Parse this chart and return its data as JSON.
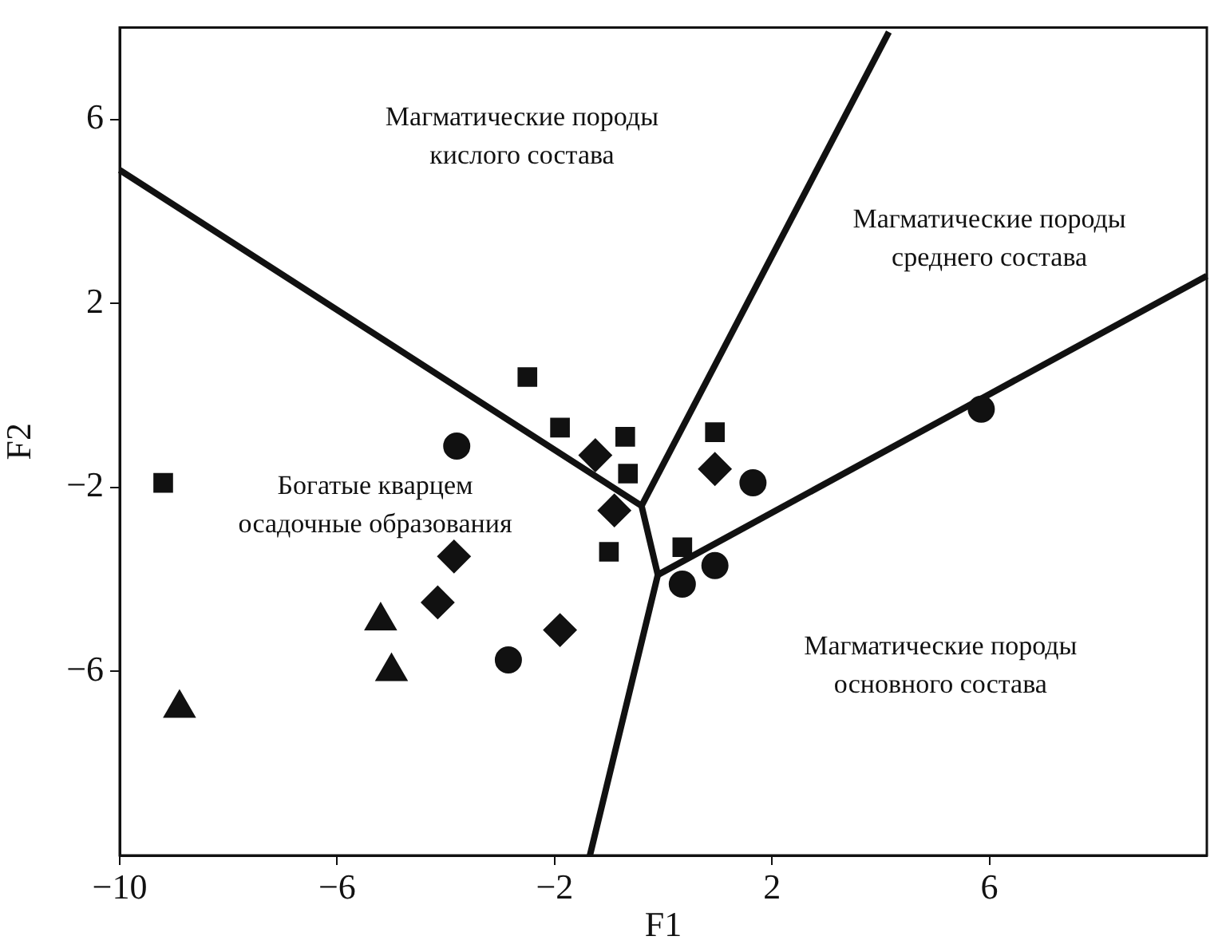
{
  "chart_data": {
    "type": "scatter",
    "xlabel": "F1",
    "ylabel": "F2",
    "xlim": [
      -10,
      10
    ],
    "ylim": [
      -10,
      8
    ],
    "xticks": [
      {
        "value": -10,
        "label": "−10"
      },
      {
        "value": -6,
        "label": "−6"
      },
      {
        "value": -2,
        "label": "−2"
      },
      2,
      6
    ],
    "yticks": [
      {
        "value": -6,
        "label": "−6"
      },
      {
        "value": -2,
        "label": "−2"
      },
      2,
      6
    ],
    "grid": false,
    "legend": false,
    "series": [
      {
        "marker": "square",
        "color": "#111111",
        "x": [
          -9.2,
          -2.5,
          -1.9,
          -0.7,
          -0.65,
          -1.0,
          0.95,
          0.35
        ],
        "values": [
          -1.9,
          0.4,
          -0.7,
          -0.9,
          -1.7,
          -3.4,
          -0.8,
          -3.3
        ]
      },
      {
        "marker": "circle",
        "color": "#111111",
        "x": [
          -3.8,
          -2.85,
          1.65,
          0.95,
          0.35,
          5.85
        ],
        "values": [
          -1.1,
          -5.75,
          -1.9,
          -3.7,
          -4.1,
          -0.3
        ]
      },
      {
        "marker": "diamond",
        "color": "#111111",
        "x": [
          -3.85,
          -4.15,
          -1.9,
          -1.25,
          -0.9,
          0.95
        ],
        "values": [
          -3.5,
          -4.5,
          -5.1,
          -1.3,
          -2.5,
          -1.6
        ]
      },
      {
        "marker": "triangle",
        "color": "#111111",
        "x": [
          -5.2,
          -5.0,
          -8.9
        ],
        "values": [
          -4.9,
          -6.0,
          -6.8
        ]
      },
      {
        "type": "line",
        "marker": "none",
        "color": "#111111",
        "x": [
          -10,
          -0.4,
          -0.1,
          -1.35
        ],
        "values": [
          4.9,
          -2.4,
          -3.9,
          -10
        ]
      },
      {
        "type": "line",
        "marker": "none",
        "color": "#111111",
        "x": [
          -0.4,
          4.15
        ],
        "values": [
          -2.4,
          7.9
        ]
      },
      {
        "type": "line",
        "marker": "none",
        "color": "#111111",
        "x": [
          -0.1,
          10
        ],
        "values": [
          -3.9,
          2.6
        ]
      }
    ],
    "annotations": [
      "Магматические породы\nкислого состава",
      "Магматические породы\nсреднего состава",
      "Богатые кварцем\nосадочные образования",
      "Магматические породы\nосновного состава"
    ]
  }
}
